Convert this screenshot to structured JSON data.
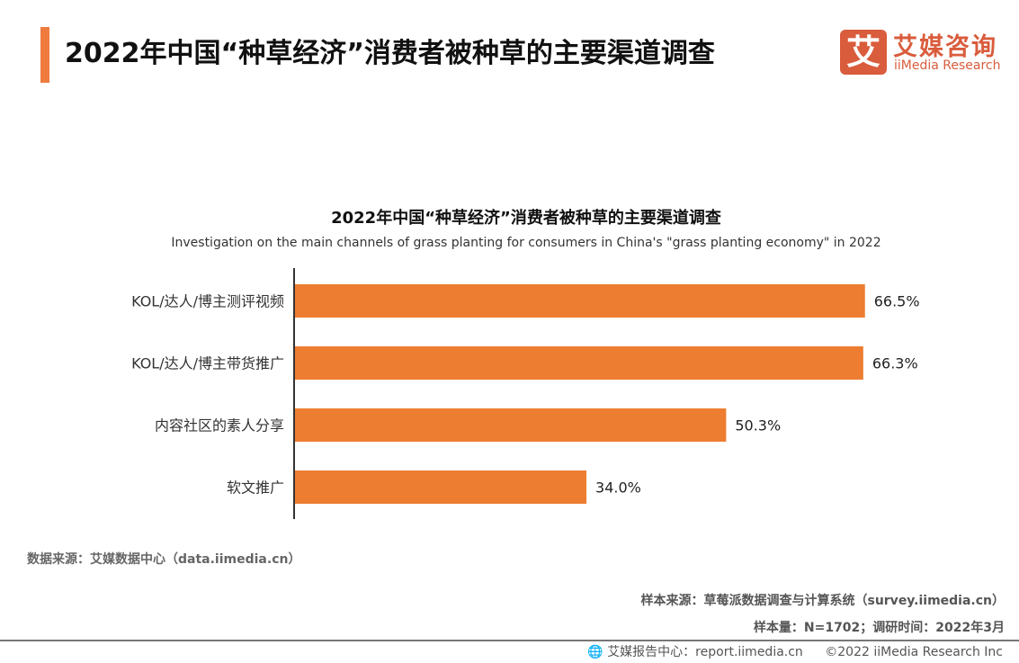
{
  "header": {
    "title": "2022年中国“种草经济”消费者被种草的主要渠道调查",
    "logo_mark": "艾",
    "logo_cn": "艾媒咨询",
    "logo_en": "iiMedia Research"
  },
  "colors": {
    "accent": "#f07b3f",
    "bar": "#ed7d31",
    "logo": "#d95c3c"
  },
  "chart_data": {
    "type": "bar",
    "orientation": "horizontal",
    "title": "2022年中国“种草经济”消费者被种草的主要渠道调查",
    "subtitle": "Investigation on the main channels of grass planting for consumers in China's \"grass planting economy\" in 2022",
    "categories": [
      "KOL/达人/博主测评视频",
      "KOL/达人/博主带货推广",
      "内容社区的素人分享",
      "软文推广"
    ],
    "values": [
      66.5,
      66.3,
      50.3,
      34.0
    ],
    "labels": [
      "66.5%",
      "66.3%",
      "50.3%",
      "34.0%"
    ],
    "unit": "%",
    "xlim": [
      0,
      100
    ],
    "grid": false,
    "legend": "none"
  },
  "footer": {
    "data_source": "数据来源：艾媒数据中心（data.iimedia.cn）",
    "sample_source": "样本来源：草莓派数据调查与计算系统（survey.iimedia.cn）",
    "sample_info": "样本量：N=1702；调研时间：2022年3月",
    "report_center": "艾媒报告中心：report.iimedia.cn",
    "copyright": "©2022  iiMedia Research  Inc"
  }
}
